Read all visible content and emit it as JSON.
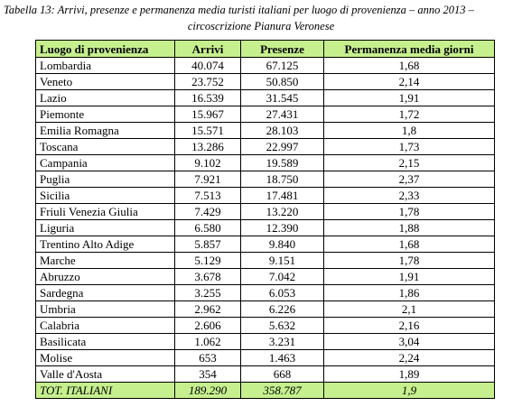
{
  "caption": {
    "line1": "Tabella 13: Arrivi, presenze e permanenza media turisti italiani per luogo di provenienza – anno 2013 –",
    "line2": "circoscrizione Pianura Veronese"
  },
  "table": {
    "headers": [
      "Luogo di provenienza",
      "Arrivi",
      "Presenze",
      "Permanenza media giorni"
    ],
    "rows": [
      [
        "Lombardia",
        "40.074",
        "67.125",
        "1,68"
      ],
      [
        "Veneto",
        "23.752",
        "50.850",
        "2,14"
      ],
      [
        "Lazio",
        "16.539",
        "31.545",
        "1,91"
      ],
      [
        "Piemonte",
        "15.967",
        "27.431",
        "1,72"
      ],
      [
        "Emilia Romagna",
        "15.571",
        "28.103",
        "1,8"
      ],
      [
        "Toscana",
        "13.286",
        "22.997",
        "1,73"
      ],
      [
        "Campania",
        "9.102",
        "19.589",
        "2,15"
      ],
      [
        "Puglia",
        "7.921",
        "18.750",
        "2,37"
      ],
      [
        "Sicilia",
        "7.513",
        "17.481",
        "2,33"
      ],
      [
        "Friuli Venezia Giulia",
        "7.429",
        "13.220",
        "1,78"
      ],
      [
        "Liguria",
        "6.580",
        "12.390",
        "1,88"
      ],
      [
        "Trentino Alto Adige",
        "5.857",
        "9.840",
        "1,68"
      ],
      [
        "Marche",
        "5.129",
        "9.151",
        "1,78"
      ],
      [
        "Abruzzo",
        "3.678",
        "7.042",
        "1,91"
      ],
      [
        "Sardegna",
        "3.255",
        "6.053",
        "1,86"
      ],
      [
        "Umbria",
        "2.962",
        "6.226",
        "2,1"
      ],
      [
        "Calabria",
        "2.606",
        "5.632",
        "2,16"
      ],
      [
        "Basilicata",
        "1.062",
        "3.231",
        "3,04"
      ],
      [
        "Molise",
        "653",
        "1.463",
        "2,24"
      ],
      [
        "Valle d'Aosta",
        "354",
        "668",
        "1,89"
      ]
    ],
    "total": [
      "TOT. ITALIANI",
      "189.290",
      "358.787",
      "1,9"
    ]
  },
  "colors": {
    "header_background": "#c6ef8e",
    "border": "#000000"
  }
}
